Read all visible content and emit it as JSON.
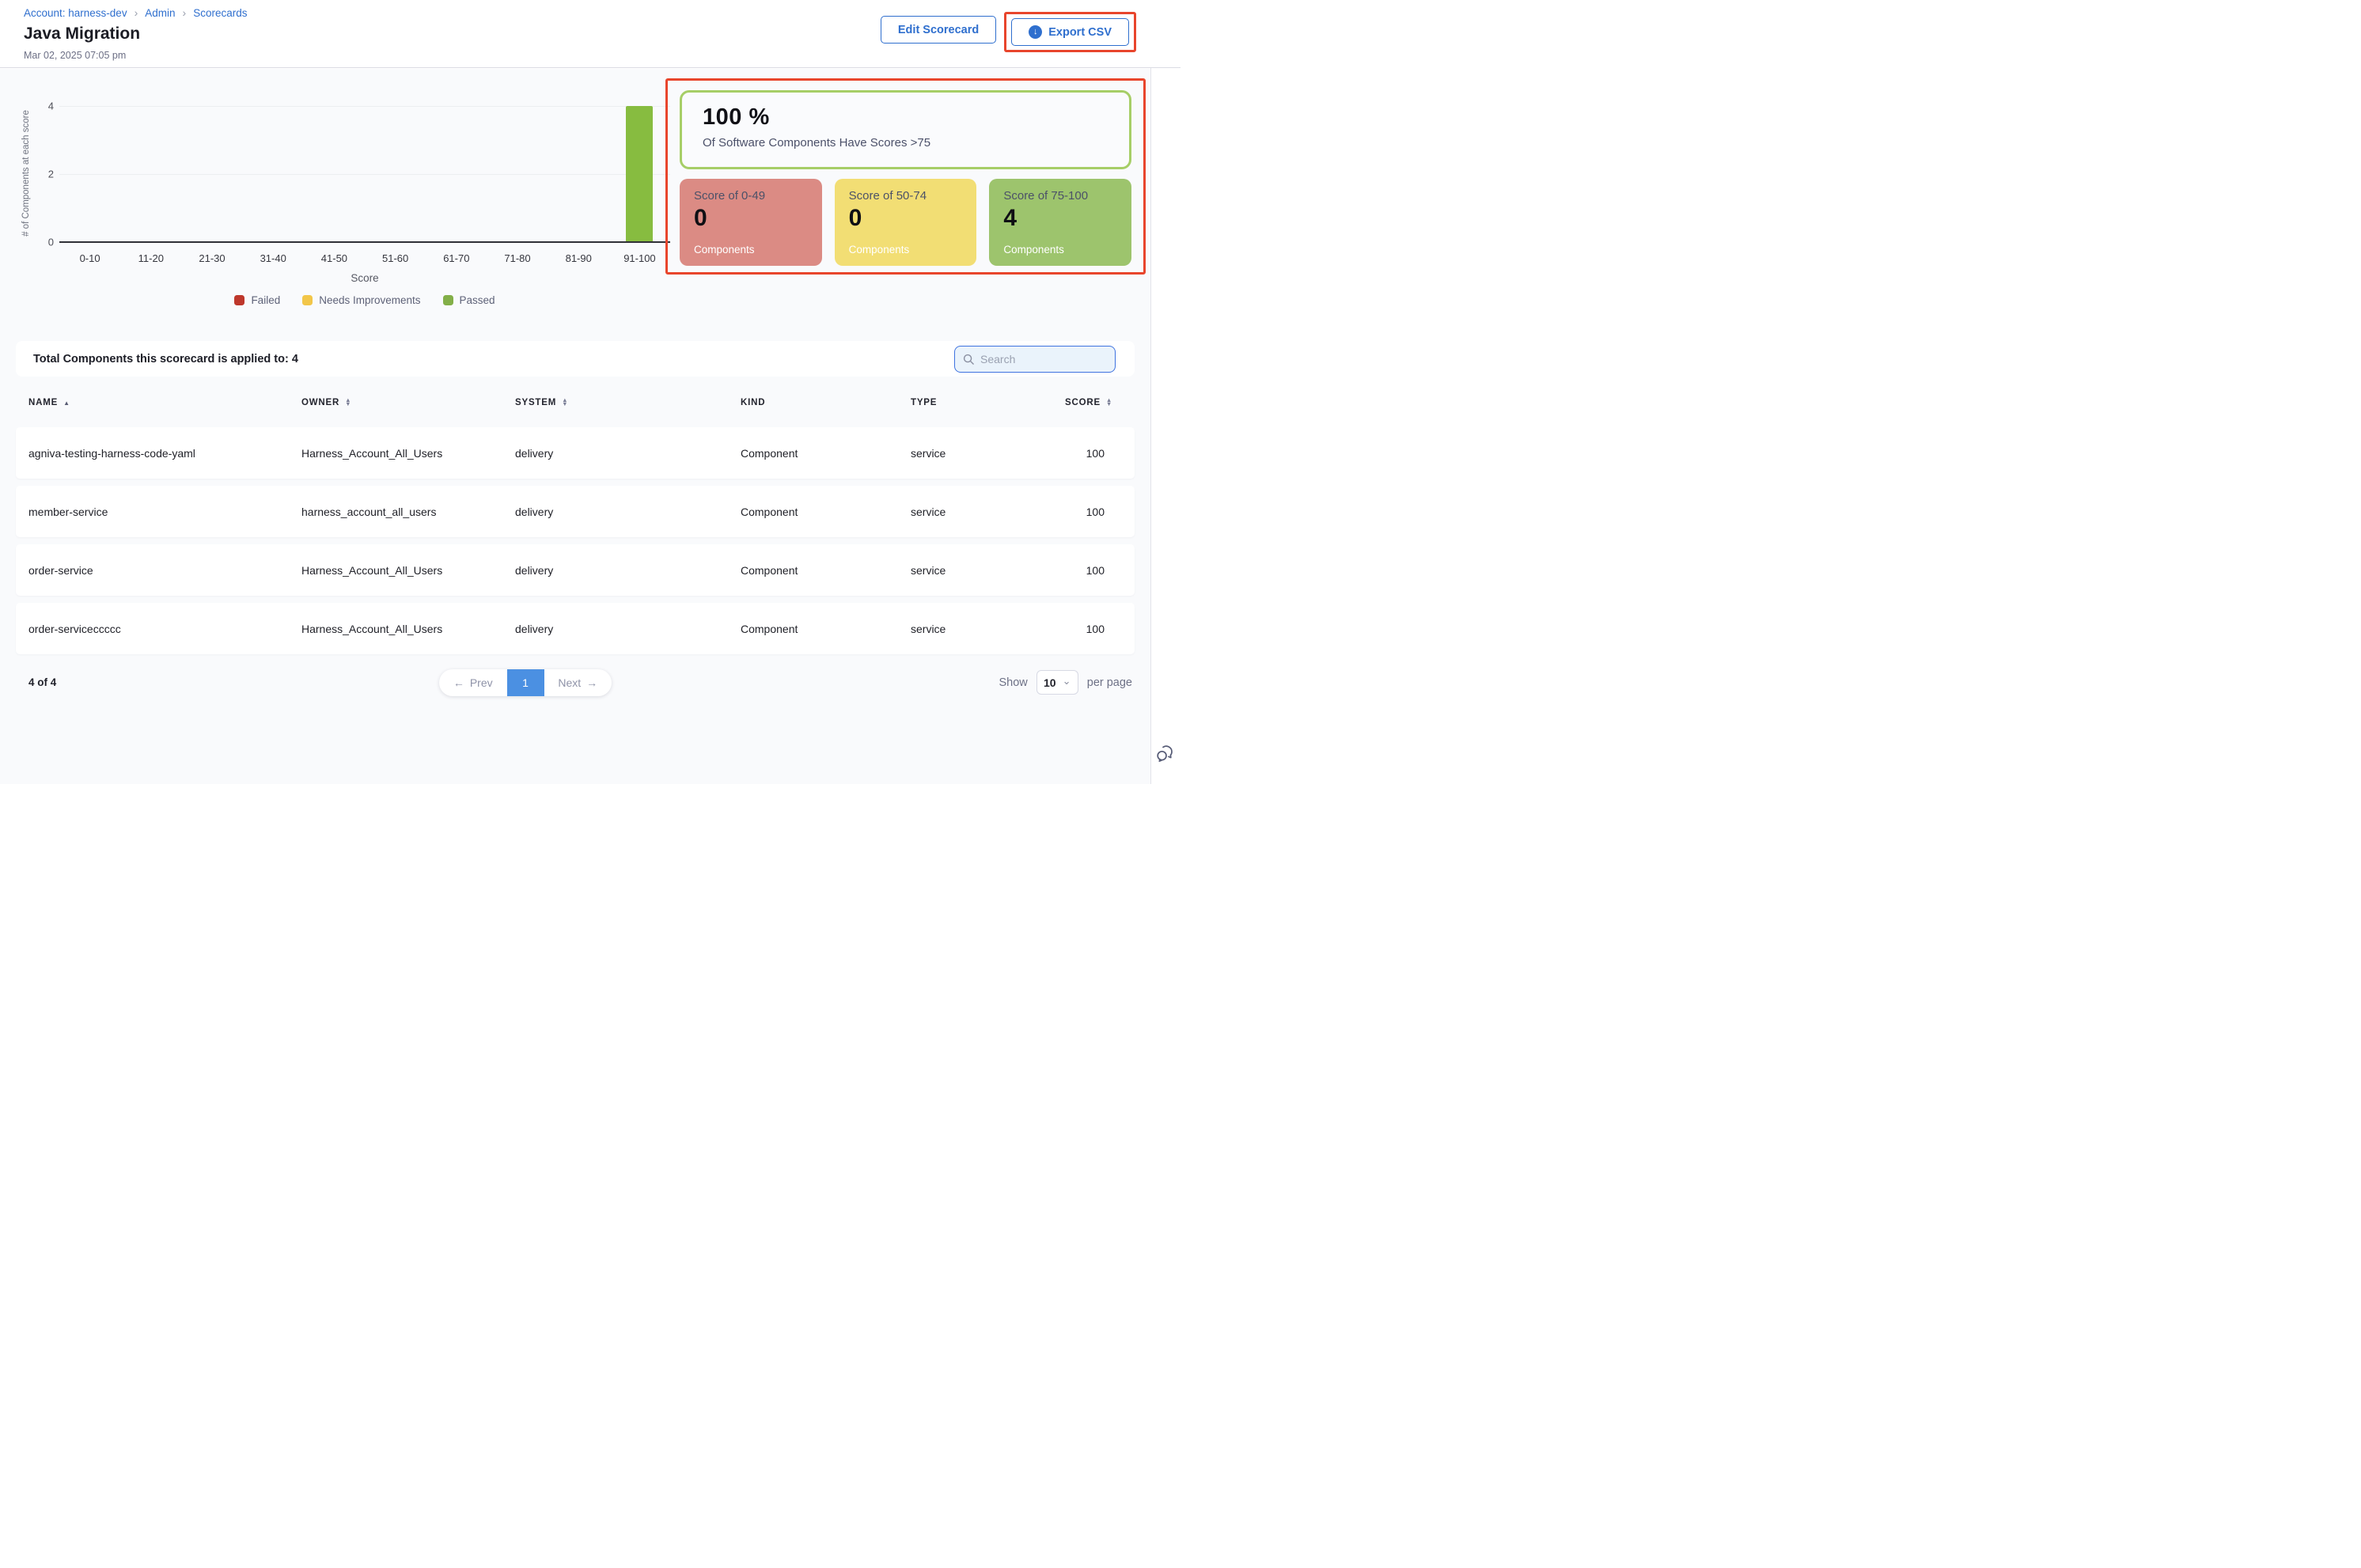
{
  "breadcrumb": {
    "account": "Account: harness-dev",
    "admin": "Admin",
    "scorecards": "Scorecards"
  },
  "header": {
    "title": "Java Migration",
    "date": "Mar 02, 2025 07:05 pm",
    "edit_button": "Edit Scorecard",
    "export_button": "Export CSV"
  },
  "annotations": {
    "color": "#e8452c"
  },
  "chart_data": {
    "type": "bar",
    "title": "",
    "categories": [
      "0-10",
      "11-20",
      "21-30",
      "31-40",
      "41-50",
      "51-60",
      "61-70",
      "71-80",
      "81-90",
      "91-100"
    ],
    "values": [
      0,
      0,
      0,
      0,
      0,
      0,
      0,
      0,
      0,
      4
    ],
    "xlabel": "Score",
    "ylabel": "# of Components at each score",
    "ylim": [
      0,
      4
    ],
    "yticks": [
      0,
      2,
      4
    ],
    "grid": true,
    "bar_color": "#87bc40",
    "legend_position": "bottom",
    "legend": [
      {
        "label": "Failed",
        "color": "#be372b"
      },
      {
        "label": "Needs Improvements",
        "color": "#f2c649"
      },
      {
        "label": "Passed",
        "color": "#83af48"
      }
    ]
  },
  "stats": {
    "percent": "100 %",
    "percent_caption": "Of Software Components Have Scores >75",
    "percent_border": "#a6ce67",
    "cards": [
      {
        "title": "Score of 0-49",
        "value": "0",
        "caption": "Components",
        "color": "#db8b84"
      },
      {
        "title": "Score of 50-74",
        "value": "0",
        "caption": "Components",
        "color": "#f2de74"
      },
      {
        "title": "Score of 75-100",
        "value": "4",
        "caption": "Components",
        "color": "#9dc46d"
      }
    ]
  },
  "table": {
    "total_label": "Total Components this scorecard is applied to: 4",
    "search_placeholder": "Search",
    "columns": [
      {
        "label": "NAME",
        "sort": "asc"
      },
      {
        "label": "OWNER",
        "sort": "both"
      },
      {
        "label": "SYSTEM",
        "sort": "both"
      },
      {
        "label": "KIND",
        "sort": "none"
      },
      {
        "label": "TYPE",
        "sort": "none"
      },
      {
        "label": "SCORE",
        "sort": "both"
      }
    ],
    "rows": [
      {
        "name": "agniva-testing-harness-code-yaml",
        "owner": "Harness_Account_All_Users",
        "system": "delivery",
        "kind": "Component",
        "type": "service",
        "score": "100"
      },
      {
        "name": "member-service",
        "owner": "harness_account_all_users",
        "system": "delivery",
        "kind": "Component",
        "type": "service",
        "score": "100"
      },
      {
        "name": "order-service",
        "owner": "Harness_Account_All_Users",
        "system": "delivery",
        "kind": "Component",
        "type": "service",
        "score": "100"
      },
      {
        "name": "order-serviceccccc",
        "owner": "Harness_Account_All_Users",
        "system": "delivery",
        "kind": "Component",
        "type": "service",
        "score": "100"
      }
    ]
  },
  "pagination": {
    "range": "4 of 4",
    "prev": "Prev",
    "page": "1",
    "next": "Next",
    "show_label": "Show",
    "page_size": "10",
    "per_page_label": "per page"
  },
  "icons": {
    "breadcrumb_separator": "›",
    "download": "↓",
    "arrow_left": "←",
    "arrow_right": "→",
    "chevron_down": "⌄",
    "sort_asc": "▲",
    "sort_desc": "▼"
  }
}
